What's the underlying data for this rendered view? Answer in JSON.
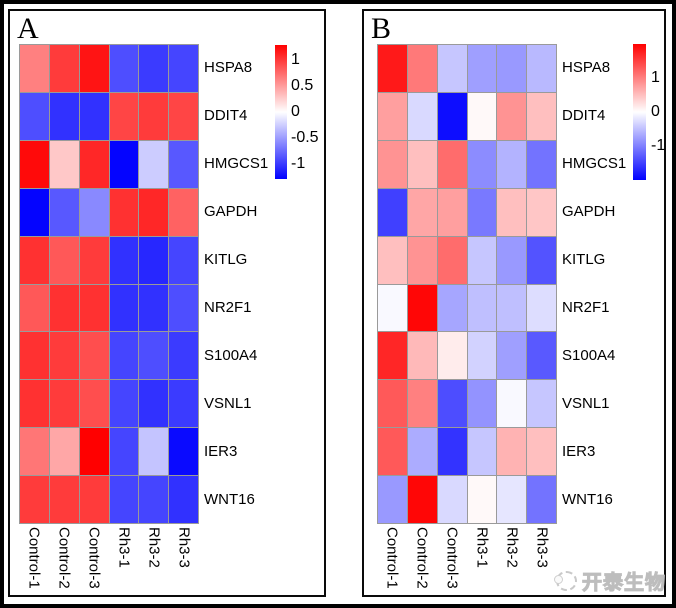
{
  "watermark": {
    "text": "开泰生物"
  },
  "grid_line_color": "#9a9a9a",
  "chart_data": [
    {
      "type": "heatmap",
      "panel_label": "A",
      "columns": [
        "Control-1",
        "Control-2",
        "Control-3",
        "Rh3-1",
        "Rh3-2",
        "Rh3-3"
      ],
      "rows": [
        "HSPA8",
        "DDIT4",
        "HMGCS1",
        "GAPDH",
        "KITLG",
        "NR2F1",
        "S100A4",
        "VSNL1",
        "IER3",
        "WNT16"
      ],
      "values": [
        [
          0.65,
          1.0,
          1.2,
          -0.9,
          -1.0,
          -0.95
        ],
        [
          -0.9,
          -1.05,
          -1.05,
          0.95,
          1.0,
          0.95
        ],
        [
          1.25,
          0.28,
          1.1,
          -1.28,
          -0.26,
          -0.85
        ],
        [
          -1.28,
          -0.85,
          -0.6,
          1.05,
          1.1,
          0.8
        ],
        [
          1.05,
          0.85,
          1.0,
          -1.05,
          -1.1,
          -0.95
        ],
        [
          0.85,
          1.05,
          1.05,
          -1.05,
          -1.05,
          -0.9
        ],
        [
          1.05,
          1.0,
          0.9,
          -0.95,
          -0.9,
          -1.0
        ],
        [
          1.05,
          1.0,
          0.9,
          -0.95,
          -1.05,
          -1.0
        ],
        [
          0.7,
          0.45,
          1.3,
          -0.95,
          -0.3,
          -1.25
        ],
        [
          1.0,
          1.0,
          1.0,
          -0.95,
          -0.95,
          -1.05
        ]
      ],
      "colorbar": {
        "tick_labels": [
          "1",
          "0.5",
          "0",
          "-0.5",
          "-1"
        ],
        "tick_values": [
          1,
          0.5,
          0,
          -0.5,
          -1
        ],
        "scale_max": 1.3,
        "gradient": [
          "#ff0000",
          "#ffffff",
          "#0000ff"
        ]
      }
    },
    {
      "type": "heatmap",
      "panel_label": "B",
      "columns": [
        "Control-1",
        "Control-2",
        "Control-3",
        "Rh3-1",
        "Rh3-2",
        "Rh3-3"
      ],
      "rows": [
        "HSPA8",
        "DDIT4",
        "HMGCS1",
        "GAPDH",
        "KITLG",
        "NR2F1",
        "S100A4",
        "VSNL1",
        "IER3",
        "WNT16"
      ],
      "values": [
        [
          1.8,
          1.05,
          -0.45,
          -0.75,
          -0.8,
          -0.55
        ],
        [
          0.75,
          -0.3,
          -1.9,
          0.05,
          0.85,
          0.5
        ],
        [
          0.85,
          0.5,
          1.15,
          -0.9,
          -0.6,
          -1.1
        ],
        [
          -1.5,
          0.7,
          0.75,
          -1.05,
          0.5,
          0.45
        ],
        [
          0.5,
          0.85,
          1.15,
          -0.45,
          -0.8,
          -1.35
        ],
        [
          -0.05,
          1.95,
          -0.7,
          -0.5,
          -0.5,
          -0.27
        ],
        [
          1.7,
          0.55,
          0.15,
          -0.35,
          -0.75,
          -1.3
        ],
        [
          1.3,
          1.0,
          -1.4,
          -0.85,
          -0.05,
          -0.45
        ],
        [
          1.3,
          -0.65,
          -1.6,
          -0.45,
          0.6,
          0.5
        ],
        [
          -0.8,
          1.95,
          -0.3,
          0.05,
          -0.2,
          -1.1
        ]
      ],
      "colorbar": {
        "tick_labels": [
          "1",
          "0",
          "-1"
        ],
        "tick_values": [
          1,
          0,
          -1
        ],
        "scale_max": 2.0,
        "gradient": [
          "#ff0000",
          "#ffffff",
          "#0000ff"
        ]
      }
    }
  ]
}
